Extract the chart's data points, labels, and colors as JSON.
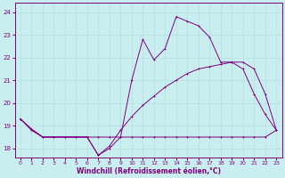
{
  "xlabel": "Windchill (Refroidissement éolien,°C)",
  "bg_color": "#c8eef0",
  "line_color": "#800080",
  "grid_color": "#b8dde0",
  "xlim": [
    -0.5,
    23.5
  ],
  "ylim": [
    17.6,
    24.4
  ],
  "xticks": [
    0,
    1,
    2,
    3,
    4,
    5,
    6,
    7,
    8,
    9,
    10,
    11,
    12,
    13,
    14,
    15,
    16,
    17,
    18,
    19,
    20,
    21,
    22,
    23
  ],
  "yticks": [
    18,
    19,
    20,
    21,
    22,
    23,
    24
  ],
  "line1_x": [
    0,
    1,
    2,
    3,
    4,
    5,
    6,
    7,
    8,
    9,
    10,
    11,
    12,
    13,
    14,
    15,
    16,
    17,
    18,
    19,
    20,
    21,
    22,
    23
  ],
  "line1_y": [
    19.3,
    18.8,
    18.5,
    18.5,
    18.5,
    18.5,
    18.5,
    17.7,
    18.0,
    18.5,
    21.0,
    22.8,
    21.9,
    22.4,
    23.8,
    23.6,
    23.4,
    22.9,
    21.8,
    21.8,
    21.5,
    20.4,
    19.5,
    18.8
  ],
  "line2_x": [
    0,
    1,
    2,
    3,
    4,
    5,
    6,
    7,
    8,
    9,
    10,
    11,
    12,
    13,
    14,
    15,
    16,
    17,
    18,
    19,
    20,
    21,
    22,
    23
  ],
  "line2_y": [
    19.3,
    18.85,
    18.5,
    18.5,
    18.5,
    18.5,
    18.5,
    18.5,
    18.5,
    18.5,
    18.5,
    18.5,
    18.5,
    18.5,
    18.5,
    18.5,
    18.5,
    18.5,
    18.5,
    18.5,
    18.5,
    18.5,
    18.5,
    18.8
  ],
  "line3_x": [
    0,
    1,
    2,
    3,
    4,
    5,
    6,
    7,
    8,
    9,
    10,
    11,
    12,
    13,
    14,
    15,
    16,
    17,
    18,
    19,
    20,
    21,
    22,
    23
  ],
  "line3_y": [
    19.3,
    18.85,
    18.5,
    18.5,
    18.5,
    18.5,
    18.5,
    17.7,
    18.1,
    18.8,
    19.4,
    19.9,
    20.3,
    20.7,
    21.0,
    21.3,
    21.5,
    21.6,
    21.7,
    21.8,
    21.8,
    21.5,
    20.4,
    18.8
  ]
}
